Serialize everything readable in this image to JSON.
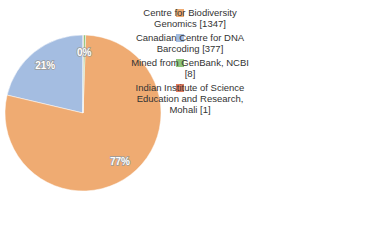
{
  "chart_data": {
    "type": "pie",
    "categories": [
      "Centre for Biodiversity Genomics [1347]",
      "Canadian Centre for DNA Barcoding [377]",
      "Mined from GenBank, NCBI [8]",
      "Indian Institute of Science Education and Research, Mohali [1]"
    ],
    "values": [
      77,
      21,
      0.46,
      0.06
    ],
    "value_labels": [
      "77%",
      "21%",
      "0%",
      null
    ],
    "colors": [
      "#efab72",
      "#a4bde1",
      "#8fc47a",
      "#e07b5f"
    ],
    "data_labels": true,
    "legend": "right"
  }
}
